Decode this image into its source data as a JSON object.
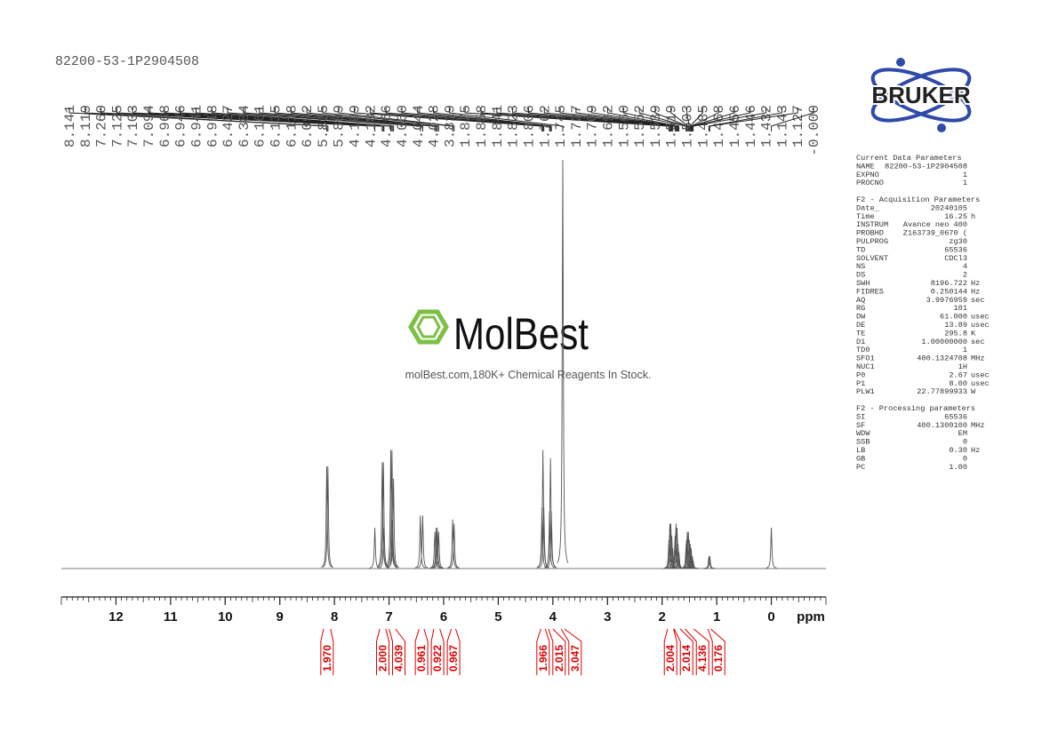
{
  "sample_id": "82200-53-1P2904508",
  "logo": "BRUKER",
  "watermark": {
    "brand": "MolBest",
    "tagline": "molBest.com,180K+ Chemical Reagents In Stock."
  },
  "chart_data": {
    "type": "nmr",
    "x_label": "ppm",
    "xlim": [
      13,
      -1
    ],
    "xticks": [
      12,
      11,
      10,
      9,
      8,
      7,
      6,
      5,
      4,
      3,
      2,
      1,
      0
    ],
    "minor_tick_step": 0.1,
    "ylim": [
      0,
      100
    ],
    "color": "#555555",
    "peaks": {
      "x": [
        8.141,
        8.119,
        {
          "value": 7.26,
          "label": "7.260"
        },
        7.125,
        7.103,
        7.094,
        6.968,
        6.946,
        6.941,
        6.918,
        6.427,
        6.384,
        6.161,
        6.135,
        6.118,
        6.092,
        5.835,
        5.809,
        4.199,
        4.182,
        4.166,
        {
          "value": 4.06,
          "label": "4.060"
        },
        4.044,
        4.028,
        3.819,
        1.875,
        1.858,
        1.841,
        1.823,
        1.806,
        1.762,
        1.745,
        1.727,
        1.709,
        1.692,
        {
          "value": 1.56,
          "label": "1.560"
        },
        1.552,
        1.539,
        1.519,
        1.503,
        1.485,
        1.468,
        1.456,
        1.446,
        1.432,
        1.143,
        1.127,
        {
          "value": 0,
          "label": "-0.000"
        }
      ],
      "values": [
        25,
        25,
        10,
        26,
        26,
        10,
        29,
        29,
        12,
        22,
        13,
        13,
        9,
        10,
        10,
        9,
        12,
        11,
        15,
        29,
        15,
        14,
        27,
        14,
        100,
        7,
        11,
        11,
        8,
        5,
        8,
        11,
        10,
        6,
        4,
        6,
        7,
        9,
        9,
        7,
        6,
        5,
        3,
        3,
        2,
        3,
        3,
        10
      ]
    },
    "integrals": {
      "color": "#dd0000",
      "ranges": [
        [
          8.2,
          8.07
        ],
        [
          7.17,
          7.06
        ],
        [
          7.0,
          6.88
        ],
        [
          6.45,
          6.36
        ],
        [
          6.18,
          6.07
        ],
        [
          5.86,
          5.78
        ],
        [
          4.22,
          4.14
        ],
        [
          4.08,
          4.0
        ],
        [
          3.85,
          3.79
        ],
        [
          1.9,
          1.79
        ],
        [
          1.78,
          1.67
        ],
        [
          1.58,
          1.42
        ],
        [
          1.16,
          1.11
        ]
      ],
      "values": [
        1.97,
        2,
        4.039,
        0.961,
        0.922,
        0.967,
        1.966,
        2.015,
        3.047,
        2.004,
        2.014,
        4.136,
        0.176
      ],
      "value_labels": [
        "1.970",
        "2.000",
        "4.039",
        "0.961",
        "0.922",
        "0.967",
        "1.966",
        "2.015",
        "3.047",
        "2.004",
        "2.014",
        "4.136",
        "0.176"
      ]
    }
  },
  "parameters": [
    {
      "title": "Current Data Parameters",
      "rows": [
        [
          "NAME",
          "82200-53-1P2904508",
          ""
        ],
        [
          "EXPNO",
          "1",
          ""
        ],
        [
          "PROCNO",
          "1",
          ""
        ]
      ]
    },
    {
      "title": "F2 - Acquisition Parameters",
      "rows": [
        [
          "Date_",
          "20240105",
          ""
        ],
        [
          "Time",
          "16.25",
          "h"
        ],
        [
          "INSTRUM",
          "Avance neo 400",
          ""
        ],
        [
          "PROBHD",
          "Z163739_0670 (",
          ""
        ],
        [
          "PULPROG",
          "zg30",
          ""
        ],
        [
          "TD",
          "65536",
          ""
        ],
        [
          "SOLVENT",
          "CDCl3",
          ""
        ],
        [
          "NS",
          "4",
          ""
        ],
        [
          "DS",
          "2",
          ""
        ],
        [
          "SWH",
          "8196.722",
          "Hz"
        ],
        [
          "FIDRES",
          "0.250144",
          "Hz"
        ],
        [
          "AQ",
          "3.9976959",
          "sec"
        ],
        [
          "RG",
          "101",
          ""
        ],
        [
          "DW",
          "61.000",
          "usec"
        ],
        [
          "DE",
          "13.89",
          "usec"
        ],
        [
          "TE",
          "295.8",
          "K"
        ],
        [
          "D1",
          "1.00000000",
          "sec"
        ],
        [
          "TD0",
          "1",
          ""
        ],
        [
          "SFO1",
          "400.1324708",
          "MHz"
        ],
        [
          "NUC1",
          "1H",
          ""
        ],
        [
          "P0",
          "2.67",
          "usec"
        ],
        [
          "P1",
          "8.00",
          "usec"
        ],
        [
          "PLW1",
          "22.77899933",
          "W"
        ]
      ]
    },
    {
      "title": "F2 - Processing parameters",
      "rows": [
        [
          "SI",
          "65536",
          ""
        ],
        [
          "SF",
          "400.1300100",
          "MHz"
        ],
        [
          "WDW",
          "EM",
          ""
        ],
        [
          "SSB",
          "0",
          ""
        ],
        [
          "LB",
          "0.30",
          "Hz"
        ],
        [
          "GB",
          "0",
          ""
        ],
        [
          "PC",
          "1.00",
          ""
        ]
      ]
    }
  ]
}
